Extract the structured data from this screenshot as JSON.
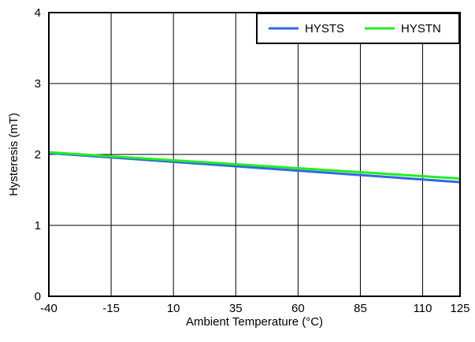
{
  "chart_data": {
    "type": "line",
    "title": "",
    "xlabel": "Ambient Temperature (°C)",
    "ylabel": "Hysteresis (mT)",
    "xlim": [
      -40,
      125
    ],
    "ylim": [
      0,
      4
    ],
    "x_ticks": [
      -40,
      -15,
      10,
      35,
      60,
      85,
      110,
      125
    ],
    "y_ticks": [
      0,
      1,
      2,
      3,
      4
    ],
    "grid": true,
    "legend_position": "top-right",
    "series": [
      {
        "name": "HYSTS",
        "color": "#3366e6",
        "x": [
          -40,
          125
        ],
        "y": [
          2.02,
          1.61
        ]
      },
      {
        "name": "HYSTN",
        "color": "#22ee22",
        "x": [
          -40,
          125
        ],
        "y": [
          2.03,
          1.66
        ]
      }
    ]
  }
}
